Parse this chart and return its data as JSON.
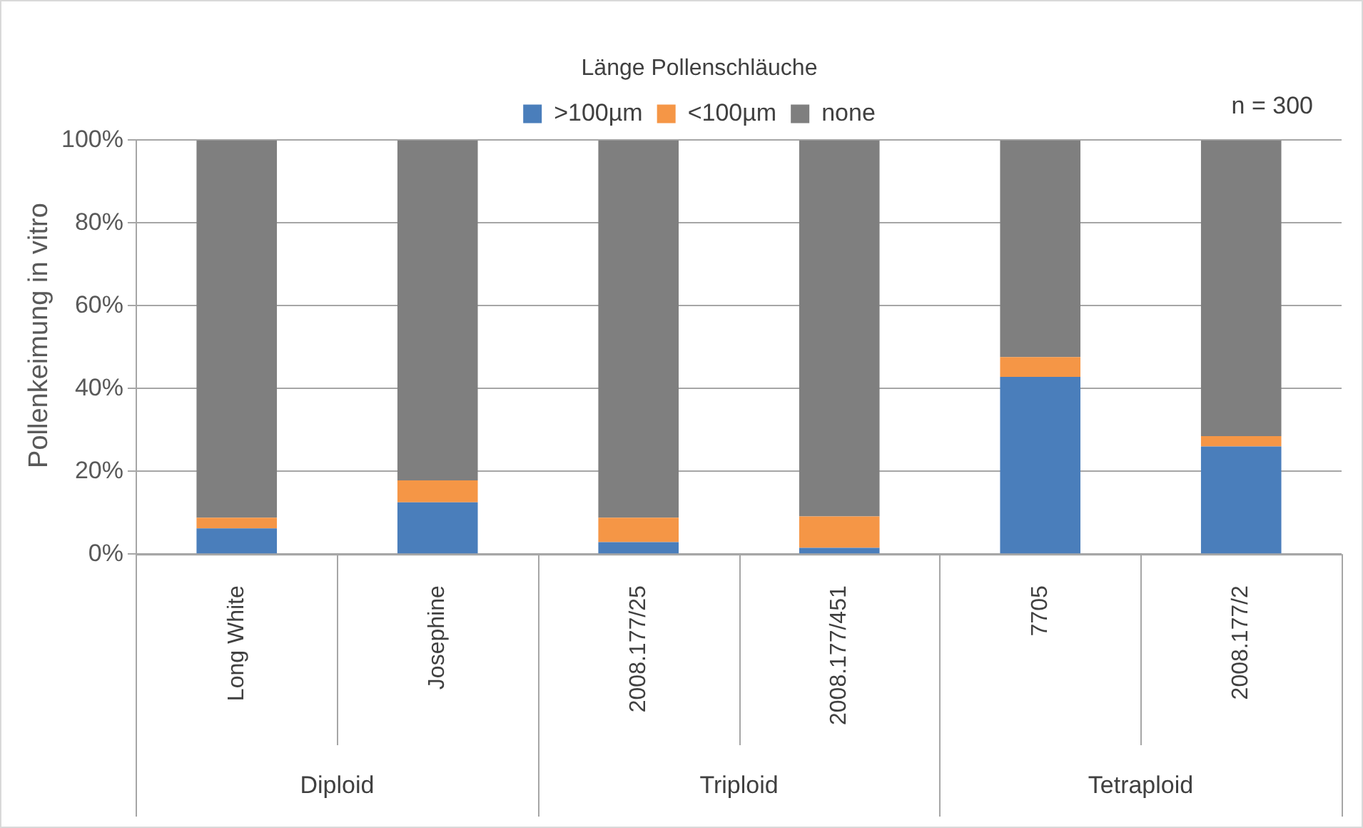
{
  "chart_data": {
    "type": "bar",
    "stacked": true,
    "legend_title": "Länge Pollenschläuche",
    "ylabel": "Pollenkeimung in vitro",
    "categories": [
      "Long White",
      "Josephine",
      "2008.177/25",
      "2008.177/451",
      "7705",
      "2008.177/2"
    ],
    "series": [
      {
        "name": ">100µm",
        "color": "#4a7ebb",
        "values": [
          6.2,
          12.5,
          2.9,
          1.5,
          42.8,
          26.0
        ]
      },
      {
        "name": "<100µm",
        "color": "#f59646",
        "values": [
          2.6,
          5.3,
          5.9,
          7.6,
          4.8,
          2.5
        ]
      },
      {
        "name": "none",
        "color": "#7f7f7f",
        "values": [
          91.2,
          82.2,
          91.2,
          90.9,
          52.4,
          71.5
        ]
      }
    ],
    "ylim": [
      0,
      100
    ],
    "yticks": [
      {
        "value": 0,
        "label": "0%"
      },
      {
        "value": 20,
        "label": "20%"
      },
      {
        "value": 40,
        "label": "40%"
      },
      {
        "value": 60,
        "label": "60%"
      },
      {
        "value": 80,
        "label": "80%"
      },
      {
        "value": 100,
        "label": "100%"
      }
    ],
    "grid": "y",
    "legend": "top",
    "annotations": [
      "n = 300",
      "Diploid",
      "Triploid",
      "Tetraploid"
    ]
  }
}
